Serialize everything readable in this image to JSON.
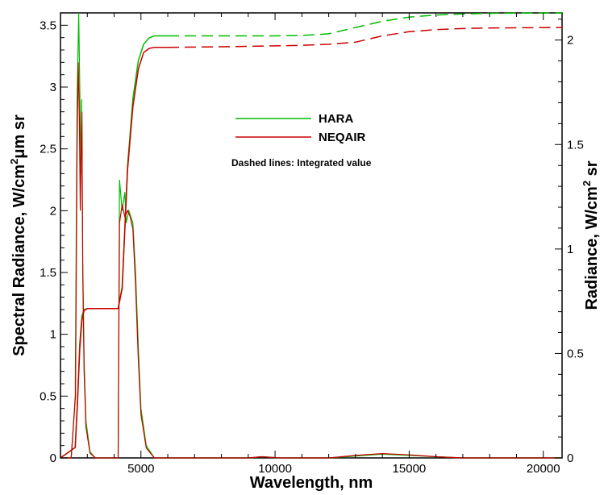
{
  "chart_data": {
    "type": "line",
    "xlabel": "Wavelength, nm",
    "ylabel_left": "Spectral Radiance, W/cm",
    "ylabel_left_sup": "2",
    "ylabel_left_tail": "μm sr",
    "ylabel_right": "Radiance, W/cm",
    "ylabel_right_sup": "2",
    "ylabel_right_tail": " sr",
    "xlim": [
      2000,
      20700
    ],
    "ylim_left": [
      0,
      3.6
    ],
    "ylim_right": [
      0,
      2.13
    ],
    "x_ticks": [
      5000,
      10000,
      15000,
      20000
    ],
    "x_tick_labels": [
      "5000",
      "10000",
      "15000",
      "20000"
    ],
    "y_left_ticks": [
      0,
      0.5,
      1,
      1.5,
      2,
      2.5,
      3,
      3.5
    ],
    "y_left_tick_labels": [
      "0",
      "0.5",
      "1",
      "1.5",
      "2",
      "2.5",
      "3",
      "3.5"
    ],
    "y_right_ticks": [
      0,
      0.5,
      1,
      1.5,
      2
    ],
    "y_right_tick_labels": [
      "0",
      "0.5",
      "1",
      "1.5",
      "2"
    ],
    "grid": false,
    "legend": {
      "placement": "center",
      "items": [
        {
          "name": "HARA",
          "color": "#00bb00"
        },
        {
          "name": "NEQAIR",
          "color": "#cc0000"
        }
      ]
    },
    "annotation": "Dashed lines: Integrated value",
    "series": [
      {
        "name": "HARA",
        "color": "#00bb00",
        "spectral": [
          [
            2000,
            0
          ],
          [
            2400,
            0
          ],
          [
            2550,
            0.5
          ],
          [
            2620,
            2.9
          ],
          [
            2680,
            3.6
          ],
          [
            2720,
            3.0
          ],
          [
            2760,
            2.3
          ],
          [
            2790,
            2.9
          ],
          [
            2830,
            1.6
          ],
          [
            2880,
            0.8
          ],
          [
            2950,
            0.3
          ],
          [
            3100,
            0.05
          ],
          [
            3300,
            0
          ],
          [
            4150,
            0
          ],
          [
            4200,
            2.25
          ],
          [
            4300,
            2.0
          ],
          [
            4400,
            2.15
          ],
          [
            4450,
            1.9
          ],
          [
            4550,
            2.0
          ],
          [
            4700,
            1.9
          ],
          [
            4800,
            1.5
          ],
          [
            4900,
            0.9
          ],
          [
            5000,
            0.4
          ],
          [
            5200,
            0.1
          ],
          [
            5500,
            0
          ],
          [
            9000,
            0
          ],
          [
            9500,
            0.01
          ],
          [
            10200,
            0
          ],
          [
            12000,
            0
          ],
          [
            13000,
            0.015
          ],
          [
            14000,
            0.03
          ],
          [
            15000,
            0.02
          ],
          [
            16000,
            0.01
          ],
          [
            17000,
            0
          ],
          [
            20700,
            0
          ]
        ],
        "integrated_solid": [
          [
            2000,
            0
          ],
          [
            2550,
            0.05
          ],
          [
            2640,
            0.3
          ],
          [
            2720,
            0.55
          ],
          [
            2800,
            0.68
          ],
          [
            2880,
            0.71
          ],
          [
            3000,
            0.715
          ],
          [
            4150,
            0.715
          ],
          [
            4300,
            0.82
          ],
          [
            4500,
            1.4
          ],
          [
            4700,
            1.72
          ],
          [
            4900,
            1.9
          ],
          [
            5100,
            1.98
          ],
          [
            5300,
            2.01
          ],
          [
            5500,
            2.02
          ],
          [
            6000,
            2.02
          ]
        ],
        "integrated_dashed": [
          [
            6000,
            2.02
          ],
          [
            8000,
            2.02
          ],
          [
            10000,
            2.02
          ],
          [
            11000,
            2.022
          ],
          [
            12000,
            2.03
          ],
          [
            13000,
            2.06
          ],
          [
            14000,
            2.09
          ],
          [
            15000,
            2.11
          ],
          [
            16000,
            2.12
          ],
          [
            17000,
            2.125
          ],
          [
            18000,
            2.128
          ],
          [
            20700,
            2.13
          ]
        ]
      },
      {
        "name": "NEQAIR",
        "color": "#cc0000",
        "spectral": [
          [
            2000,
            0
          ],
          [
            2400,
            0
          ],
          [
            2560,
            0.5
          ],
          [
            2620,
            2.5
          ],
          [
            2660,
            3.2
          ],
          [
            2700,
            2.8
          ],
          [
            2740,
            2.0
          ],
          [
            2780,
            2.6
          ],
          [
            2800,
            2.8
          ],
          [
            2830,
            1.5
          ],
          [
            2880,
            0.7
          ],
          [
            2950,
            0.25
          ],
          [
            3100,
            0.04
          ],
          [
            3300,
            0
          ],
          [
            4150,
            0
          ],
          [
            4200,
            1.9
          ],
          [
            4300,
            2.05
          ],
          [
            4400,
            1.95
          ],
          [
            4500,
            2.0
          ],
          [
            4600,
            1.95
          ],
          [
            4700,
            1.85
          ],
          [
            4800,
            1.4
          ],
          [
            4900,
            0.8
          ],
          [
            5000,
            0.35
          ],
          [
            5200,
            0.08
          ],
          [
            5500,
            0
          ],
          [
            9000,
            0
          ],
          [
            9500,
            0.01
          ],
          [
            10200,
            0
          ],
          [
            12000,
            0
          ],
          [
            13000,
            0.02
          ],
          [
            14000,
            0.035
          ],
          [
            15000,
            0.025
          ],
          [
            16000,
            0.01
          ],
          [
            17000,
            0
          ],
          [
            20700,
            0
          ]
        ],
        "integrated_solid": [
          [
            2000,
            0
          ],
          [
            2550,
            0.05
          ],
          [
            2640,
            0.28
          ],
          [
            2720,
            0.52
          ],
          [
            2800,
            0.66
          ],
          [
            2880,
            0.705
          ],
          [
            3000,
            0.715
          ],
          [
            4150,
            0.715
          ],
          [
            4300,
            0.81
          ],
          [
            4500,
            1.38
          ],
          [
            4700,
            1.68
          ],
          [
            4900,
            1.86
          ],
          [
            5100,
            1.94
          ],
          [
            5300,
            1.96
          ],
          [
            5500,
            1.965
          ],
          [
            6000,
            1.965
          ]
        ],
        "integrated_dashed": [
          [
            6000,
            1.965
          ],
          [
            8000,
            1.968
          ],
          [
            10000,
            1.972
          ],
          [
            11000,
            1.975
          ],
          [
            12000,
            1.98
          ],
          [
            13000,
            1.99
          ],
          [
            14000,
            2.02
          ],
          [
            15000,
            2.04
          ],
          [
            16000,
            2.05
          ],
          [
            17000,
            2.055
          ],
          [
            18000,
            2.058
          ],
          [
            20700,
            2.06
          ]
        ]
      }
    ]
  }
}
